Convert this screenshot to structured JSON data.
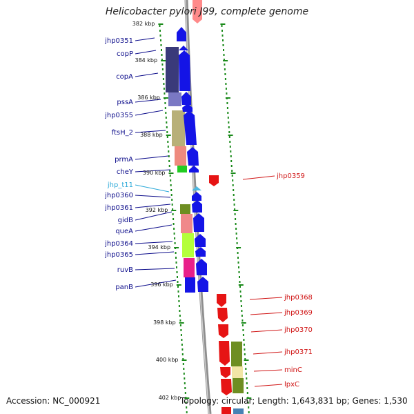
{
  "title": "Helicobacter pylori J99, complete genome",
  "footer": {
    "accession": "Accession: NC_000921",
    "summary": "Topology: circular; Length: 1,643,831 bp; Genes: 1,530"
  },
  "scale_ticks": [
    "382 kbp",
    "384 kbp",
    "386 kbp",
    "388 kbp",
    "390 kbp",
    "392 kbp",
    "394 kbp",
    "396 kbp",
    "398 kbp",
    "400 kbp",
    "402 kbp"
  ],
  "left_genes": [
    "jhp0351",
    "copP",
    "copA",
    "pssA",
    "jhp0355",
    "ftsH_2",
    "prmA",
    "cheY",
    "jhp_t11",
    "jhp0360",
    "jhp0361",
    "gidB",
    "queA",
    "jhp0364",
    "jhp0365",
    "ruvB",
    "panB"
  ],
  "right_genes": [
    "jhp0359",
    "jhp0368",
    "jhp0369",
    "jhp0370",
    "jhp0371",
    "minC",
    "lpxC"
  ],
  "colors": {
    "forward_strand": "#1414e6",
    "reverse_strand": "#e61414",
    "trna": "#4fb8e0",
    "forward_label": "#0b0b8a",
    "reverse_label": "#d01414",
    "trna_label": "#2aa8d8",
    "tick_green": "#1a8a1a"
  }
}
